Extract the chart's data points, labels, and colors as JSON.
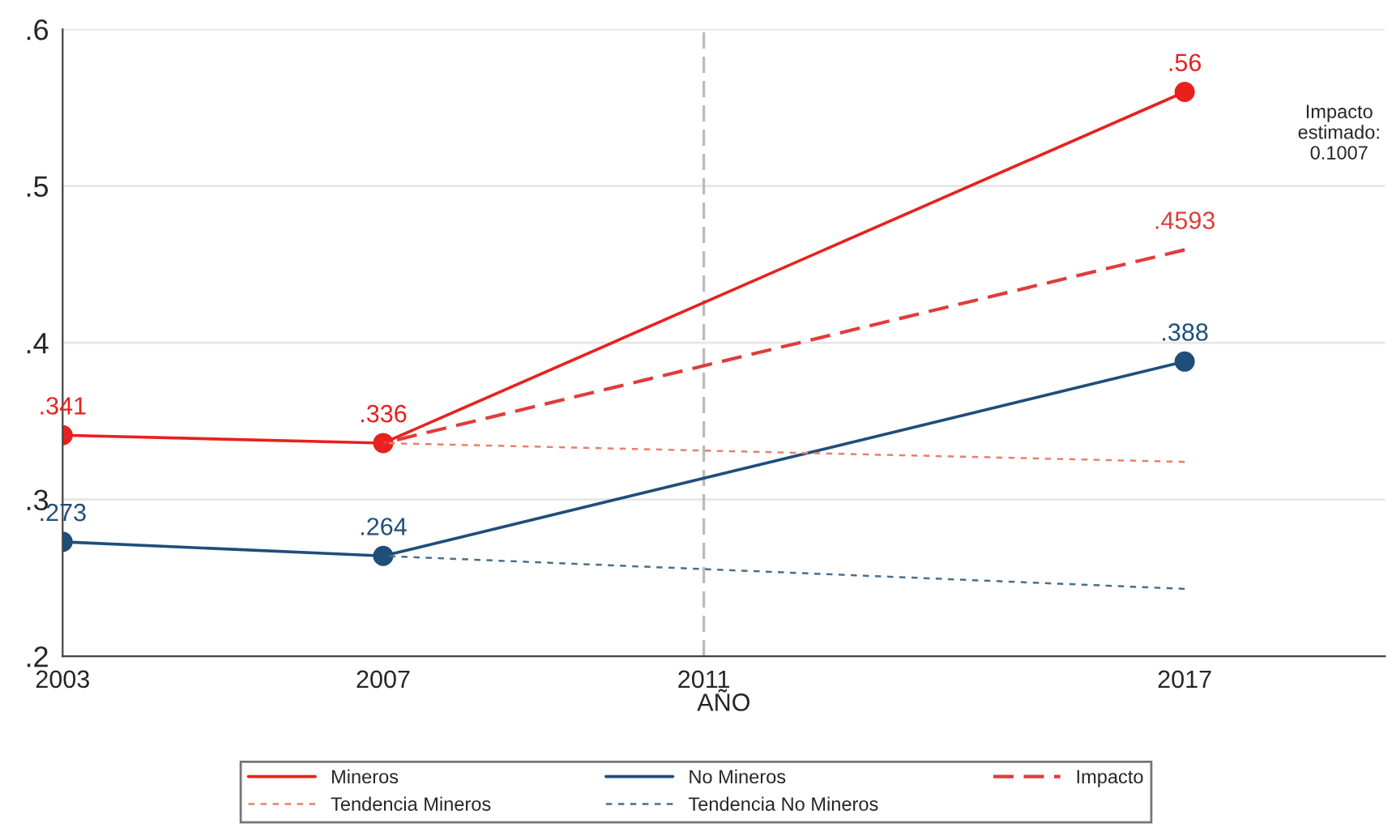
{
  "chart_data": {
    "type": "line",
    "xlabel": "AÑO",
    "series": [
      {
        "name": "Mineros",
        "color": "#e8211e",
        "x": [
          2003,
          2007,
          2017
        ],
        "values": [
          0.341,
          0.336,
          0.56
        ],
        "value_labels": [
          ".341",
          ".336",
          ".56"
        ],
        "marker": "circle",
        "line_style": "solid"
      },
      {
        "name": "No Mineros",
        "color": "#1f4e79",
        "x": [
          2003,
          2007,
          2017
        ],
        "values": [
          0.273,
          0.264,
          0.388
        ],
        "value_labels": [
          ".273",
          ".264",
          ".388"
        ],
        "marker": "circle",
        "line_style": "solid"
      },
      {
        "name": "Impacto",
        "color": "#e03c3c",
        "x": [
          2007,
          2017
        ],
        "values": [
          0.336,
          0.4593
        ],
        "value_labels": [
          null,
          ".4593"
        ],
        "marker": "none",
        "line_style": "dashed"
      },
      {
        "name": "Tendencia Mineros",
        "color": "#e8806a",
        "x": [
          2007,
          2017
        ],
        "values": [
          0.336,
          0.324
        ],
        "marker": "none",
        "line_style": "dotted"
      },
      {
        "name": "Tendencia No Mineros",
        "color": "#4a6f8a",
        "x": [
          2007,
          2017
        ],
        "values": [
          0.264,
          0.243
        ],
        "marker": "none",
        "line_style": "dotted"
      }
    ],
    "xlim": [
      2003,
      2019.5
    ],
    "xticks": [
      2003,
      2007,
      2011,
      2017
    ],
    "ylim": [
      0.2,
      0.6
    ],
    "yticks": [
      {
        "value": 0.2,
        "label": ".2"
      },
      {
        "value": 0.3,
        "label": ".3"
      },
      {
        "value": 0.4,
        "label": ".4"
      },
      {
        "value": 0.5,
        "label": ".5"
      },
      {
        "value": 0.6,
        "label": ".6"
      }
    ],
    "ref_lines": [
      {
        "axis": "x",
        "value": 2011,
        "color": "#bbbbbb",
        "line_style": "dashed"
      }
    ],
    "annotations": [
      "Impacto\nestimado:\n0.1007"
    ],
    "grid": "y",
    "legend": "bottom"
  }
}
